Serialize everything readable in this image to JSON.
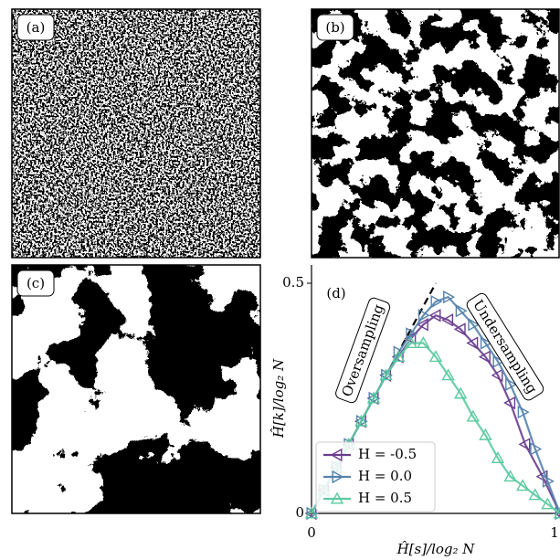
{
  "panels": [
    {
      "label": "(a)"
    },
    {
      "label": "(b)"
    },
    {
      "label": "(c)"
    }
  ],
  "chart_data": {
    "type": "line",
    "panel_label": "(d)",
    "x_label": "Ĥ[s]/log₂ N",
    "y_label": "Ĥ[k]/log₂ N",
    "xlim": [
      0,
      1
    ],
    "ylim": [
      0,
      0.5
    ],
    "xticks": [
      0,
      1
    ],
    "yticks": [
      0,
      0.5
    ],
    "legend": "lower left",
    "reference_line": {
      "x": [
        0,
        0.5
      ],
      "y": [
        0,
        0.5
      ],
      "color": "#000000"
    },
    "annotations": [
      "Oversampling",
      "Undersampling"
    ],
    "series": [
      {
        "name": "H = -0.5",
        "color": "#6a3d8f",
        "marker": "left",
        "x": [
          0,
          0.05,
          0.1,
          0.15,
          0.2,
          0.25,
          0.3,
          0.35,
          0.4,
          0.45,
          0.5,
          0.55,
          0.6,
          0.65,
          0.7,
          0.75,
          0.8,
          0.86,
          0.93,
          1
        ],
        "values": [
          0,
          0.05,
          0.1,
          0.15,
          0.2,
          0.25,
          0.3,
          0.34,
          0.38,
          0.41,
          0.43,
          0.42,
          0.4,
          0.37,
          0.34,
          0.3,
          0.24,
          0.15,
          0.08,
          0
        ]
      },
      {
        "name": "H = 0.0",
        "color": "#5583ad",
        "marker": "right",
        "x": [
          0,
          0.05,
          0.1,
          0.15,
          0.2,
          0.25,
          0.3,
          0.35,
          0.4,
          0.45,
          0.5,
          0.55,
          0.6,
          0.65,
          0.7,
          0.75,
          0.8,
          0.85,
          0.9,
          0.95,
          1
        ],
        "values": [
          0,
          0.05,
          0.1,
          0.15,
          0.2,
          0.25,
          0.3,
          0.35,
          0.39,
          0.43,
          0.46,
          0.47,
          0.44,
          0.41,
          0.37,
          0.33,
          0.28,
          0.22,
          0.14,
          0.07,
          0
        ]
      },
      {
        "name": "H = 0.5",
        "color": "#5ccaa0",
        "marker": "up",
        "x": [
          0,
          0.05,
          0.1,
          0.15,
          0.2,
          0.25,
          0.3,
          0.35,
          0.4,
          0.45,
          0.5,
          0.55,
          0.6,
          0.65,
          0.7,
          0.75,
          0.8,
          0.85,
          0.9,
          0.95,
          1
        ],
        "values": [
          0,
          0.05,
          0.1,
          0.15,
          0.2,
          0.25,
          0.3,
          0.34,
          0.37,
          0.37,
          0.34,
          0.3,
          0.26,
          0.21,
          0.17,
          0.12,
          0.08,
          0.06,
          0.04,
          0.02,
          0
        ]
      }
    ]
  }
}
